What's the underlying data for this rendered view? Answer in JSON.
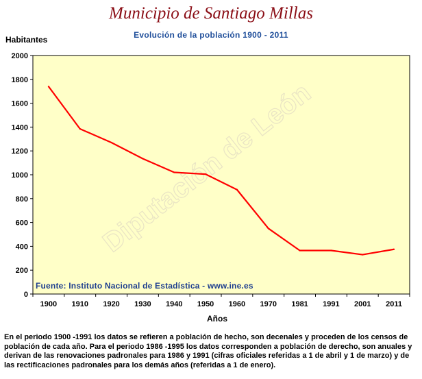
{
  "header": {
    "title": "Municipio de Santiago Millas",
    "subtitle": "Evolución de la población 1900 - 2011"
  },
  "watermark": "Diputación de León",
  "source": "Fuente: Instituto Nacional de Estadística - www.ine.es",
  "footnote": "En el periodo 1900 -1991 los datos se refieren a población de hecho, son decenales y proceden de los censos de población de cada año. Para el periodo 1986 -1995 los datos corresponden a población de derecho, son anuales y derivan de las renovaciones padronales para 1986 y 1991 (cifras oficiales referidas a 1 de abril y 1 de marzo) y de las rectificaciones padronales para los demás años (referidas a 1 de enero).",
  "colors": {
    "plot_background": "#ffffc8",
    "line": "#ff0000",
    "title": "#8b0e16",
    "subtitle": "#1f4e9a"
  },
  "chart_data": {
    "type": "line",
    "title": "Municipio de Santiago Millas",
    "subtitle": "Evolución de la población 1900 - 2011",
    "xlabel": "Años",
    "ylabel": "Habitantes",
    "categories": [
      "1900",
      "1910",
      "1920",
      "1930",
      "1940",
      "1950",
      "1960",
      "1970",
      "1981",
      "1991",
      "2001",
      "2011"
    ],
    "series": [
      {
        "values": [
          1740,
          1385,
          1270,
          1135,
          1020,
          1005,
          875,
          550,
          365,
          365,
          330,
          375
        ]
      }
    ],
    "ylim": [
      0,
      2000
    ],
    "yticks": [
      0,
      200,
      400,
      600,
      800,
      1000,
      1200,
      1400,
      1600,
      1800,
      2000
    ],
    "grid": false,
    "legend": "none"
  }
}
